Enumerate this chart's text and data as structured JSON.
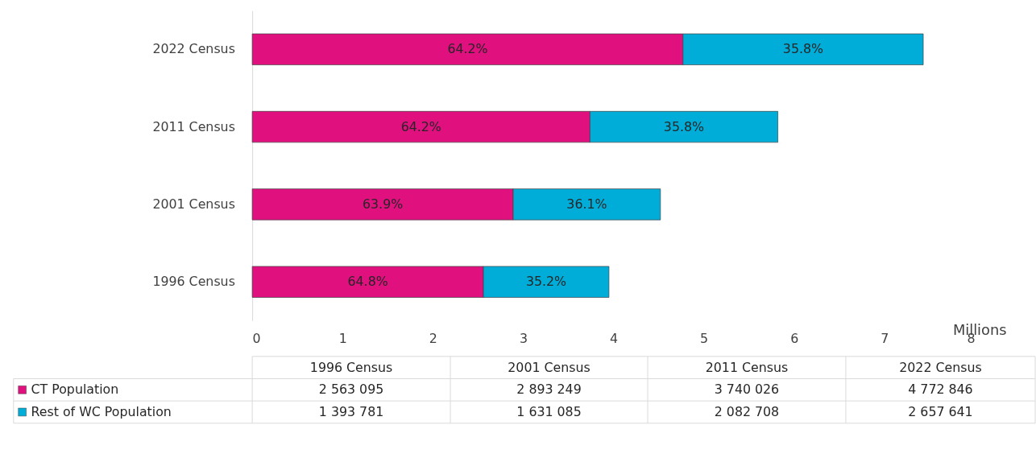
{
  "chart_data": {
    "type": "bar",
    "orientation": "horizontal",
    "stacked": true,
    "categories": [
      "2022 Census",
      "2011 Census",
      "2001 Census",
      "1996 Census"
    ],
    "series": [
      {
        "name": "CT Population",
        "color": "#e0107f",
        "values": [
          4.77,
          3.74,
          2.89,
          2.56
        ]
      },
      {
        "name": "Rest of WC Population",
        "color": "#00acd8",
        "values": [
          2.66,
          2.08,
          1.63,
          1.39
        ]
      }
    ],
    "xlabel": "Millions",
    "xlim": [
      0,
      8
    ],
    "xticks": [
      0,
      1,
      2,
      3,
      4,
      5,
      6,
      7,
      8
    ],
    "grid": false,
    "legend": "bottom",
    "annotations": [
      "64.2%",
      "64.2%",
      "63.9%",
      "64.8%",
      "35.8%",
      "35.8%",
      "36.1%",
      "35.2%",
      "4 772 846",
      "3 740 026",
      "2 893 249",
      "2 563 095",
      "2 657 641",
      "2 082 708",
      "1 631 085",
      "1 393 781"
    ]
  }
}
